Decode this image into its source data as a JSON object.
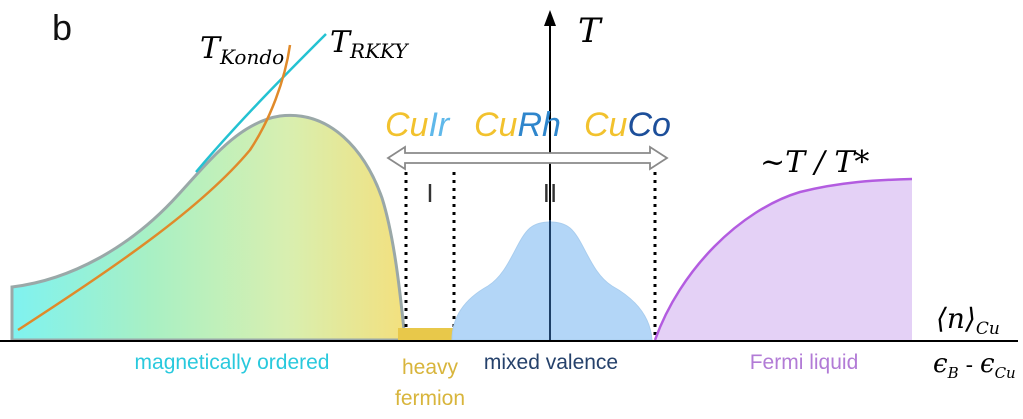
{
  "panel_label": "b",
  "temperature_axis_label": "T",
  "kondo_label": {
    "base": "T",
    "sub": "Kondo"
  },
  "rkky_label": {
    "base": "T",
    "sub": "RKKY"
  },
  "compounds": [
    {
      "prefix": "Cu",
      "suffix": "Ir"
    },
    {
      "prefix": "Cu",
      "suffix": "Rh"
    },
    {
      "prefix": "Cu",
      "suffix": "Co"
    }
  ],
  "region_markers": {
    "one": "I",
    "two": "II"
  },
  "fermi_liquid_label": "~T / T*",
  "occupancy_axis_label": {
    "left": "⟨n⟩",
    "sub": "Cu"
  },
  "energy_axis_label": {
    "e1": "ϵ",
    "sub1": "B",
    "dash": " - ",
    "e2": "ϵ",
    "sub2": "Cu"
  },
  "regions": {
    "magnetic": "magnetically ordered",
    "heavy_fermion_line1": "heavy",
    "heavy_fermion_line2": "fermion",
    "mixed_valence": "mixed valence",
    "fermi_liquid": "Fermi liquid"
  },
  "colors": {
    "cu_gold": "#f2c22e",
    "ir_light_blue": "#5fb8ea",
    "rh_blue": "#2f86cc",
    "co_dark_blue": "#1d4f9a",
    "magnetic_text": "#29c9dd",
    "heavy_text": "#d8b53c",
    "mixed_text": "#25416b",
    "fermi_text": "#b27bd6",
    "kondo_curve": "#e08a2a",
    "rkky_curve": "#24c2d2",
    "dome_fill": "#b3d6f7",
    "fermi_fill": "#e4d1f6",
    "fermi_curve": "#b35ce0"
  }
}
